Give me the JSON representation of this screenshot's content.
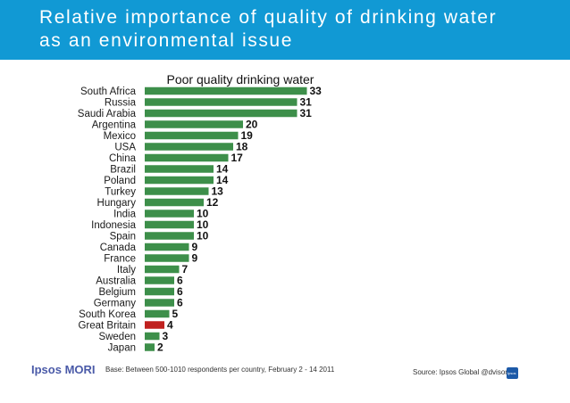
{
  "slide": {
    "title_line1": "Relative importance of quality of drinking water",
    "title_line2": "as an environmental issue",
    "logo_text": "Ipsos MORI",
    "base_note": "Base: Between 500-1010 respondents per country, February 2 - 14 2011",
    "source_note": "Source: Ipsos Global @dvisor",
    "badge_text": "Ipsos"
  },
  "colors": {
    "header_bg": "#1199d4",
    "bar_default": "#3d8f4a",
    "bar_highlight": "#c0211f"
  },
  "chart_data": {
    "type": "bar",
    "orientation": "horizontal",
    "title": "Poor quality drinking water",
    "categories": [
      "South Africa",
      "Russia",
      "Saudi Arabia",
      "Argentina",
      "Mexico",
      "USA",
      "China",
      "Brazil",
      "Poland",
      "Turkey",
      "Hungary",
      "India",
      "Indonesia",
      "Spain",
      "Canada",
      "France",
      "Italy",
      "Australia",
      "Belgium",
      "Germany",
      "South Korea",
      "Great Britain",
      "Sweden",
      "Japan"
    ],
    "values": [
      33,
      31,
      31,
      20,
      19,
      18,
      17,
      14,
      14,
      13,
      12,
      10,
      10,
      10,
      9,
      9,
      7,
      6,
      6,
      6,
      5,
      4,
      3,
      2
    ],
    "highlight": "Great Britain",
    "xlim": [
      0,
      34
    ],
    "grid": false,
    "legend": "none"
  }
}
